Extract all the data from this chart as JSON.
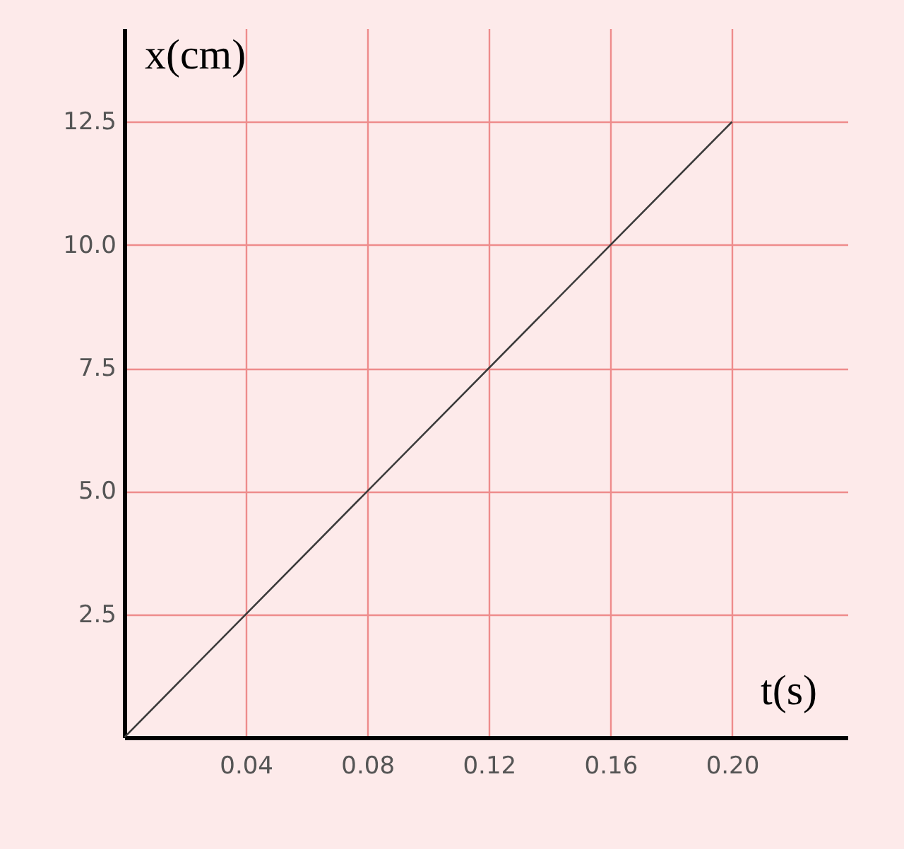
{
  "chart_data": {
    "type": "line",
    "xlabel": "t(s)",
    "ylabel": "x(cm)",
    "x": [
      0,
      0.2
    ],
    "series": [
      {
        "color": "#3a3a3a",
        "values": [
          0,
          12.5
        ]
      }
    ],
    "xlim": [
      0,
      0.238
    ],
    "ylim": [
      0,
      14.4
    ],
    "xticks": [
      0.04,
      0.08,
      0.12,
      0.16,
      {
        "value": 0.2,
        "label": "0.20"
      }
    ],
    "yticks": [
      2.5,
      {
        "value": 5,
        "label": "5.0"
      },
      7.5,
      {
        "value": 10,
        "label": "10.0"
      },
      12.5
    ],
    "grid": true,
    "marker": "none",
    "line_style": "solid"
  }
}
